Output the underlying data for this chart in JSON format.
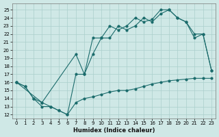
{
  "xlabel": "Humidex (Indice chaleur)",
  "bg_color": "#cfe8e6",
  "grid_color": "#aacfcc",
  "line_color": "#1a6b6b",
  "xlim": [
    -0.5,
    23.5
  ],
  "ylim": [
    11.5,
    25.8
  ],
  "yticks": [
    12,
    13,
    14,
    15,
    16,
    17,
    18,
    19,
    20,
    21,
    22,
    23,
    24,
    25
  ],
  "xticks": [
    0,
    1,
    2,
    3,
    4,
    5,
    6,
    7,
    8,
    9,
    10,
    11,
    12,
    13,
    14,
    15,
    16,
    17,
    18,
    19,
    20,
    21,
    22,
    23
  ],
  "line_bottom_x": [
    0,
    1,
    2,
    3,
    4,
    5,
    6,
    7,
    8,
    9,
    10,
    11,
    12,
    13,
    14,
    15,
    16,
    17,
    18,
    19,
    20,
    21,
    22,
    23
  ],
  "line_bottom_y": [
    16,
    15.5,
    14,
    13,
    13,
    12.5,
    12,
    13.5,
    14,
    14.2,
    14.5,
    14.8,
    15,
    15.0,
    15.2,
    15.5,
    15.8,
    16.0,
    16.2,
    16.3,
    16.4,
    16.5,
    16.5,
    16.5
  ],
  "line_mid_x": [
    0,
    3,
    7,
    8,
    9,
    10,
    11,
    12,
    13,
    14,
    15,
    16,
    17,
    18,
    19,
    20,
    21,
    22,
    23
  ],
  "line_mid_y": [
    16,
    13.5,
    19.5,
    17,
    19.5,
    21.5,
    21.5,
    23,
    22.5,
    23,
    24,
    23.5,
    24.5,
    25,
    24,
    23.5,
    21.5,
    22,
    17.5
  ],
  "line_top_x": [
    0,
    1,
    2,
    3,
    4,
    5,
    6,
    7,
    8,
    9,
    10,
    11,
    12,
    13,
    14,
    15,
    16,
    17,
    18,
    19,
    20,
    21,
    22,
    23
  ],
  "line_top_y": [
    16,
    15.5,
    14,
    13.5,
    13,
    12.5,
    12,
    17,
    17,
    21.5,
    21.5,
    23,
    22.5,
    23,
    24,
    23.5,
    23.8,
    25,
    25,
    24,
    23.5,
    22,
    22,
    17.5
  ]
}
